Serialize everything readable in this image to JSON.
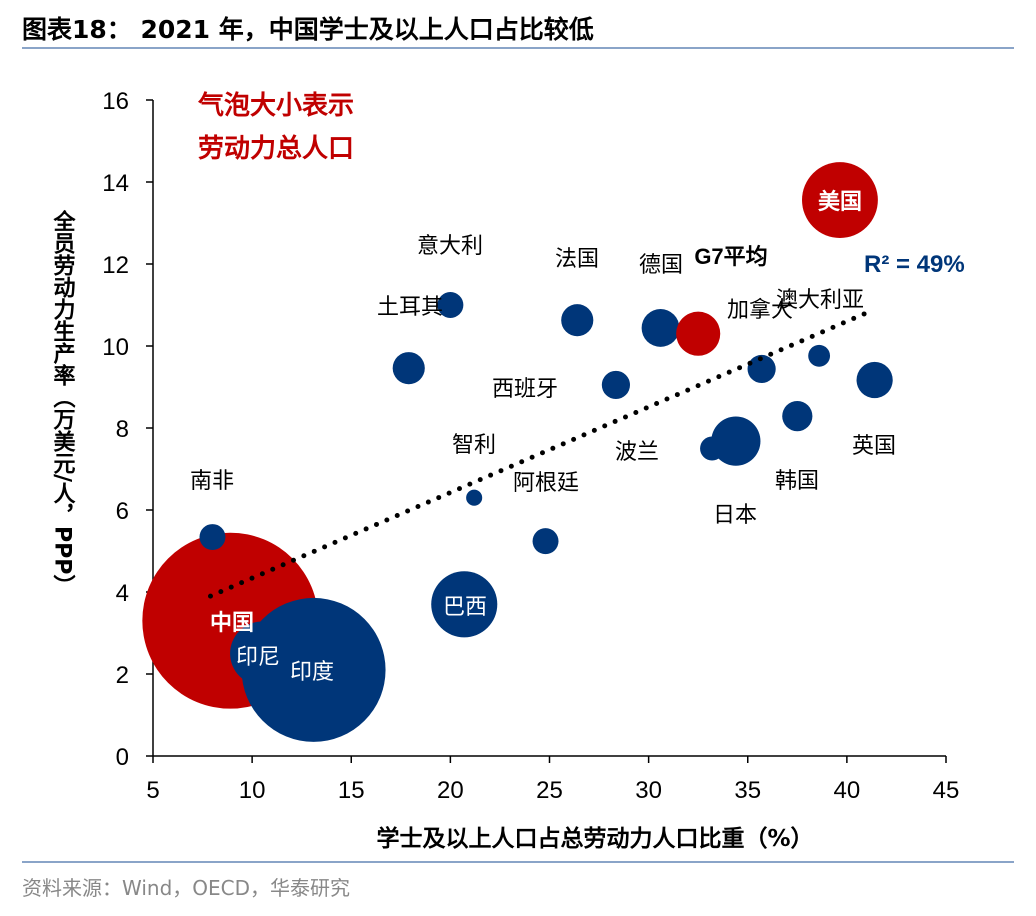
{
  "header": {
    "title": "图表18： 2021 年，中国学士及以上人口占比较低"
  },
  "footer": {
    "source": "资料来源：Wind，OECD，华泰研究"
  },
  "chart_data": {
    "type": "scatter",
    "subtype": "bubble",
    "xlabel": "学士及以上人口占总劳动力人口比重（%）",
    "ylabel": "全员劳动力生产率（万美元/人，PPP）",
    "xlim": [
      5,
      45
    ],
    "ylim": [
      0,
      16
    ],
    "xticks": [
      "5",
      "10",
      "15",
      "20",
      "25",
      "30",
      "35",
      "40",
      "45"
    ],
    "yticks": [
      "0",
      "2",
      "4",
      "6",
      "8",
      "10",
      "12",
      "14",
      "16"
    ],
    "grid": false,
    "size_note": [
      "气泡大小表示",
      "劳动力总人口"
    ],
    "r_squared_label": "R² = 49%",
    "trendline": {
      "style": "dotted",
      "x": [
        7.9,
        41.1
      ],
      "y": [
        3.9,
        10.83
      ]
    },
    "colors": {
      "highlight": "#C00000",
      "default": "#003679",
      "trend": "#000000"
    },
    "points": [
      {
        "name": "中国",
        "x": 8.9,
        "y": 3.3,
        "size": 780,
        "highlight": true
      },
      {
        "name": "印尼",
        "x": 10.5,
        "y": 2.5,
        "size": 103,
        "highlight": false
      },
      {
        "name": "印度",
        "x": 13.1,
        "y": 2.1,
        "size": 522,
        "highlight": false
      },
      {
        "name": "南非",
        "x": 8.0,
        "y": 5.34,
        "size": 17,
        "highlight": false
      },
      {
        "name": "巴西",
        "x": 20.7,
        "y": 3.7,
        "size": 110,
        "highlight": false
      },
      {
        "name": "意大利",
        "x": 20.0,
        "y": 11.0,
        "size": 17,
        "highlight": false
      },
      {
        "name": "土耳其",
        "x": 17.9,
        "y": 9.46,
        "size": 26,
        "highlight": false
      },
      {
        "name": "法国",
        "x": 26.4,
        "y": 10.63,
        "size": 26,
        "highlight": false
      },
      {
        "name": "德国",
        "x": 30.6,
        "y": 10.44,
        "size": 36,
        "highlight": false
      },
      {
        "name": "G7平均",
        "x": 32.5,
        "y": 10.3,
        "size": 49,
        "highlight": true
      },
      {
        "name": "西班牙",
        "x": 28.35,
        "y": 9.05,
        "size": 20,
        "highlight": false
      },
      {
        "name": "智利",
        "x": 21.2,
        "y": 6.3,
        "size": 6.5,
        "highlight": false
      },
      {
        "name": "阿根廷",
        "x": 24.8,
        "y": 5.24,
        "size": 17,
        "highlight": false
      },
      {
        "name": "波兰",
        "x": 33.2,
        "y": 7.5,
        "size": 14.5,
        "highlight": false
      },
      {
        "name": "日本",
        "x": 34.4,
        "y": 7.68,
        "size": 61,
        "highlight": false
      },
      {
        "name": "加拿大",
        "x": 35.7,
        "y": 9.44,
        "size": 20,
        "highlight": false
      },
      {
        "name": "澳大利亚",
        "x": 38.6,
        "y": 9.76,
        "size": 12,
        "highlight": false
      },
      {
        "name": "韩国",
        "x": 37.5,
        "y": 8.29,
        "size": 23,
        "highlight": false
      },
      {
        "name": "英国",
        "x": 41.4,
        "y": 9.17,
        "size": 33,
        "highlight": false
      },
      {
        "name": "美国",
        "x": 39.65,
        "y": 13.56,
        "size": 145,
        "highlight": true
      }
    ]
  }
}
